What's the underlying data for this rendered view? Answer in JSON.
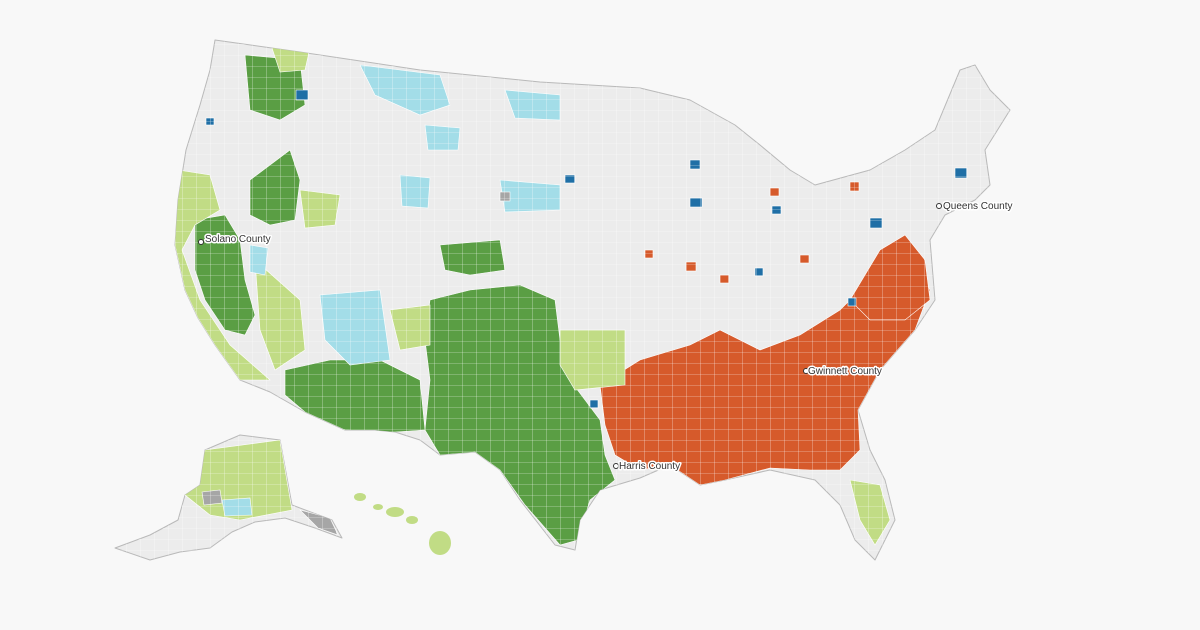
{
  "map": {
    "colors": {
      "land": "#ececec",
      "border": "#b9b9b9",
      "dark_green": "#5a9e44",
      "light_green": "#c1dc85",
      "light_blue": "#a3dde8",
      "dark_blue": "#1f6fa6",
      "orange": "#d65a2b",
      "gray": "#a6a6a6"
    },
    "labels": {
      "solano": "Solano County",
      "queens": "Queens County",
      "gwinnett": "Gwinnett County",
      "harris": "Harris County"
    }
  }
}
